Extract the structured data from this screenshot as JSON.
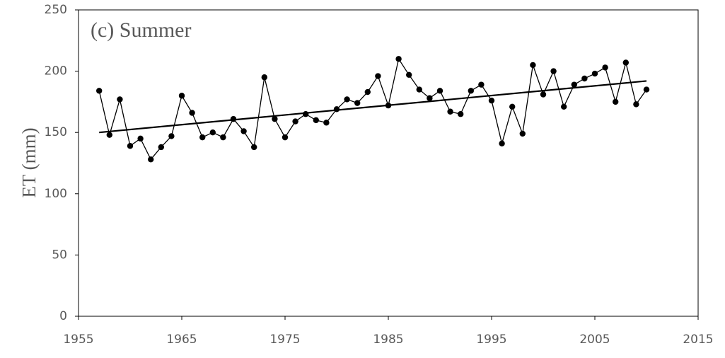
{
  "chart_data": {
    "type": "line",
    "annotation": "(c) Summer",
    "y_label": "ET (mm)",
    "x": [
      1957,
      1958,
      1959,
      1960,
      1961,
      1962,
      1963,
      1964,
      1965,
      1966,
      1967,
      1968,
      1969,
      1970,
      1971,
      1972,
      1973,
      1974,
      1975,
      1976,
      1977,
      1978,
      1979,
      1980,
      1981,
      1982,
      1983,
      1984,
      1985,
      1986,
      1987,
      1988,
      1989,
      1990,
      1991,
      1992,
      1993,
      1994,
      1995,
      1996,
      1997,
      1998,
      1999,
      2000,
      2001,
      2002,
      2003,
      2004,
      2005,
      2006,
      2007,
      2008,
      2009,
      2010
    ],
    "series": [
      {
        "color": "#000000",
        "values": [
          184,
          148,
          177,
          139,
          145,
          128,
          138,
          147,
          180,
          166,
          146,
          150,
          146,
          161,
          151,
          138,
          195,
          161,
          146,
          159,
          165,
          160,
          158,
          169,
          177,
          174,
          183,
          196,
          172,
          210,
          197,
          185,
          178,
          184,
          167,
          165,
          184,
          189,
          176,
          141,
          171,
          149,
          205,
          181,
          200,
          171,
          189,
          194,
          198,
          203,
          175,
          207,
          173,
          185
        ]
      }
    ],
    "trend": {
      "x": [
        1957,
        2010
      ],
      "values": [
        150,
        192
      ],
      "color": "#000000"
    },
    "xlim": [
      1955,
      2015
    ],
    "xticks": [
      1955,
      1965,
      1975,
      1985,
      1995,
      2005,
      2015
    ],
    "ylim": [
      0,
      250
    ],
    "yticks": [
      0,
      50,
      100,
      150,
      200,
      250
    ]
  }
}
